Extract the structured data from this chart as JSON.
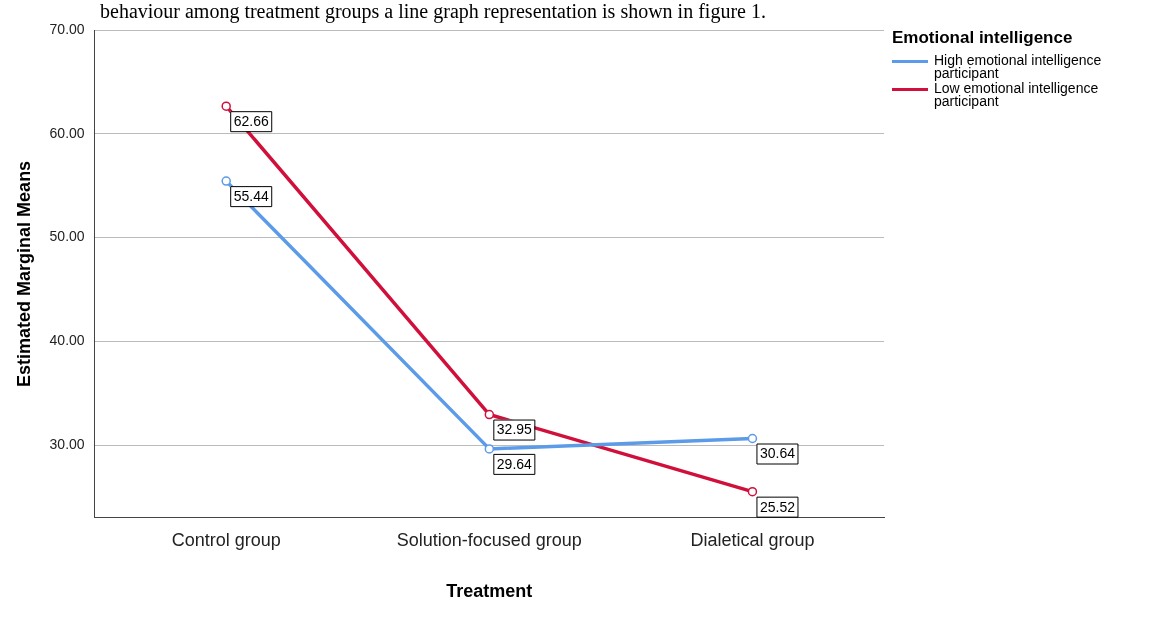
{
  "chart_data": {
    "type": "line",
    "annotations": [
      "behaviour among treatment groups a line graph representation is shown in figure 1."
    ],
    "xlabel": "Treatment",
    "ylabel": "Estimated Marginal Means",
    "legend_title": "Emotional intelligence",
    "categories": [
      "Control group",
      "Solution-focused group",
      "Dialetical group"
    ],
    "series": [
      {
        "name": "High emotional intelligence participant",
        "color": "#5b9be8",
        "values": [
          55.44,
          29.64,
          30.64
        ]
      },
      {
        "name": "Low emotional intelligence participant",
        "color": "#d0103a",
        "values": [
          62.66,
          32.95,
          25.52
        ]
      }
    ],
    "ylim": [
      23,
      70
    ],
    "yticks": [
      {
        "value": 30,
        "label": "30.00"
      },
      {
        "value": 40,
        "label": "40.00"
      },
      {
        "value": 50,
        "label": "50.00"
      },
      {
        "value": 60,
        "label": "60.00"
      },
      {
        "value": 70,
        "label": "70.00"
      }
    ],
    "grid": "y",
    "legend": "top right",
    "marker": "circle",
    "line_style": "solid",
    "data_labels": true
  }
}
